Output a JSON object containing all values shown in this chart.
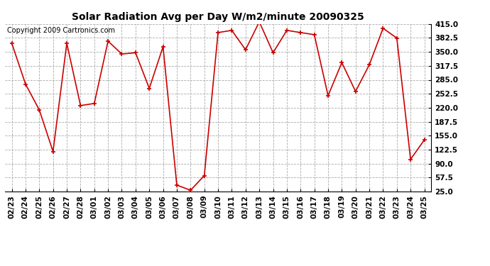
{
  "title": "Solar Radiation Avg per Day W/m2/minute 20090325",
  "copyright": "Copyright 2009 Cartronics.com",
  "dates": [
    "02/23",
    "02/24",
    "02/25",
    "02/26",
    "02/27",
    "02/28",
    "03/01",
    "03/02",
    "03/03",
    "03/04",
    "03/05",
    "03/06",
    "03/07",
    "03/08",
    "03/09",
    "03/10",
    "03/11",
    "03/12",
    "03/13",
    "03/14",
    "03/15",
    "03/16",
    "03/17",
    "03/18",
    "03/19",
    "03/20",
    "03/21",
    "03/22",
    "03/23",
    "03/24",
    "03/25"
  ],
  "values": [
    370,
    275,
    215,
    118,
    370,
    225,
    230,
    375,
    345,
    348,
    265,
    362,
    40,
    28,
    62,
    395,
    400,
    355,
    420,
    348,
    400,
    395,
    390,
    248,
    325,
    258,
    320,
    405,
    382,
    100,
    145
  ],
  "ylim": [
    25.0,
    415.0
  ],
  "yticks": [
    25.0,
    57.5,
    90.0,
    122.5,
    155.0,
    187.5,
    220.0,
    252.5,
    285.0,
    317.5,
    350.0,
    382.5,
    415.0
  ],
  "line_color": "#cc0000",
  "marker": "+",
  "marker_size": 5,
  "marker_linewidth": 1.2,
  "line_width": 1.2,
  "bg_color": "#ffffff",
  "grid_color": "#aaaaaa",
  "title_fontsize": 10,
  "tick_fontsize": 7.5,
  "copyright_fontsize": 7
}
